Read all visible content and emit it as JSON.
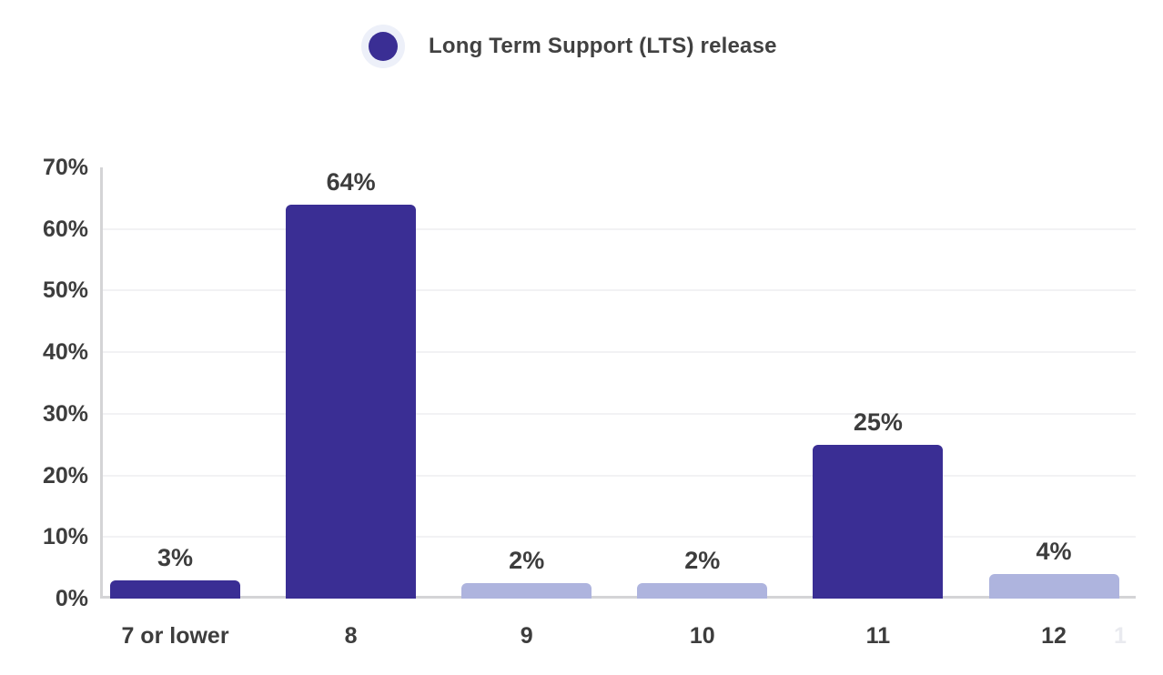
{
  "legend": {
    "label": "Long Term Support (LTS) release",
    "marker_color": "#3A2E94",
    "marker_halo_color": "#EDF0F9"
  },
  "colors": {
    "lts_bar": "#3A2E94",
    "non_lts_bar": "#AEB4DE",
    "label_text": "#3D3D3D",
    "grid": "#F2F2F4",
    "axis": "#D4D4D6"
  },
  "chart_data": {
    "type": "bar",
    "title": "",
    "xlabel": "",
    "ylabel": "",
    "categories": [
      "7 or lower",
      "8",
      "9",
      "10",
      "11",
      "12"
    ],
    "values": [
      3,
      64,
      2,
      2,
      25,
      4
    ],
    "data_labels": [
      "3%",
      "64%",
      "2%",
      "2%",
      "25%",
      "4%"
    ],
    "lts": [
      true,
      true,
      false,
      false,
      true,
      false
    ],
    "legend_entries": [
      "Long Term Support (LTS) release"
    ],
    "legend_position": "top-center",
    "ylim": [
      0,
      70
    ],
    "yticks": [
      "0%",
      "10%",
      "20%",
      "30%",
      "40%",
      "50%",
      "60%",
      "70%"
    ],
    "grid": "horizontal"
  },
  "faint_corner_text": "1"
}
